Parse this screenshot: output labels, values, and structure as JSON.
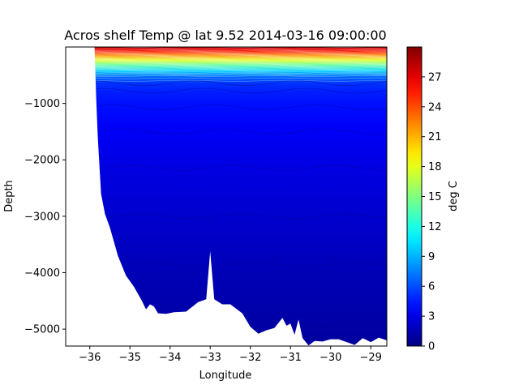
{
  "chart_data": {
    "type": "heatmap",
    "title": "Acros shelf Temp @ lat 9.52 2014-03-16 09:00:00",
    "xlabel": "Longitude",
    "ylabel": "Depth",
    "colorbar_label": "deg C",
    "xlim": [
      -36.6,
      -28.6
    ],
    "ylim": [
      -5300,
      0
    ],
    "x_ticks": [
      -36,
      -35,
      -34,
      -33,
      -32,
      -31,
      -30,
      -29
    ],
    "y_ticks": [
      -1000,
      -2000,
      -3000,
      -4000,
      -5000
    ],
    "colorbar_ticks": [
      0,
      3,
      6,
      9,
      12,
      15,
      18,
      21,
      24,
      27
    ],
    "colorbar_range": [
      0,
      30
    ],
    "colormap": "jet",
    "grid": false,
    "seafloor_profile": [
      [
        -36.6,
        0
      ],
      [
        -35.88,
        0
      ],
      [
        -35.84,
        -900
      ],
      [
        -35.8,
        -1600
      ],
      [
        -35.72,
        -2600
      ],
      [
        -35.62,
        -2960
      ],
      [
        -35.5,
        -3200
      ],
      [
        -35.3,
        -3700
      ],
      [
        -35.1,
        -4050
      ],
      [
        -34.9,
        -4250
      ],
      [
        -34.7,
        -4500
      ],
      [
        -34.6,
        -4650
      ],
      [
        -34.5,
        -4560
      ],
      [
        -34.4,
        -4600
      ],
      [
        -34.3,
        -4720
      ],
      [
        -34.1,
        -4730
      ],
      [
        -33.9,
        -4700
      ],
      [
        -33.6,
        -4690
      ],
      [
        -33.3,
        -4520
      ],
      [
        -33.1,
        -4470
      ],
      [
        -33.0,
        -3620
      ],
      [
        -32.9,
        -4470
      ],
      [
        -32.7,
        -4560
      ],
      [
        -32.5,
        -4560
      ],
      [
        -32.2,
        -4720
      ],
      [
        -32.0,
        -4960
      ],
      [
        -31.8,
        -5080
      ],
      [
        -31.6,
        -5020
      ],
      [
        -31.4,
        -4980
      ],
      [
        -31.2,
        -4800
      ],
      [
        -31.1,
        -4940
      ],
      [
        -31.0,
        -4900
      ],
      [
        -30.9,
        -5100
      ],
      [
        -30.8,
        -4830
      ],
      [
        -30.7,
        -5160
      ],
      [
        -30.55,
        -5290
      ],
      [
        -30.4,
        -5210
      ],
      [
        -30.2,
        -5220
      ],
      [
        -30.0,
        -5180
      ],
      [
        -29.8,
        -5180
      ],
      [
        -29.6,
        -5230
      ],
      [
        -29.4,
        -5280
      ],
      [
        -29.2,
        -5160
      ],
      [
        -29.0,
        -5230
      ],
      [
        -28.8,
        -5150
      ],
      [
        -28.6,
        -5200
      ]
    ],
    "temperature_profile": [
      [
        0,
        28
      ],
      [
        40,
        27
      ],
      [
        90,
        25
      ],
      [
        150,
        22
      ],
      [
        230,
        18
      ],
      [
        320,
        14
      ],
      [
        420,
        10
      ],
      [
        520,
        7
      ],
      [
        650,
        5.2
      ],
      [
        800,
        4.6
      ],
      [
        1000,
        4.2
      ],
      [
        1400,
        3.6
      ],
      [
        2000,
        3.0
      ],
      [
        3000,
        2.3
      ],
      [
        4000,
        1.6
      ],
      [
        5300,
        0.9
      ]
    ]
  }
}
